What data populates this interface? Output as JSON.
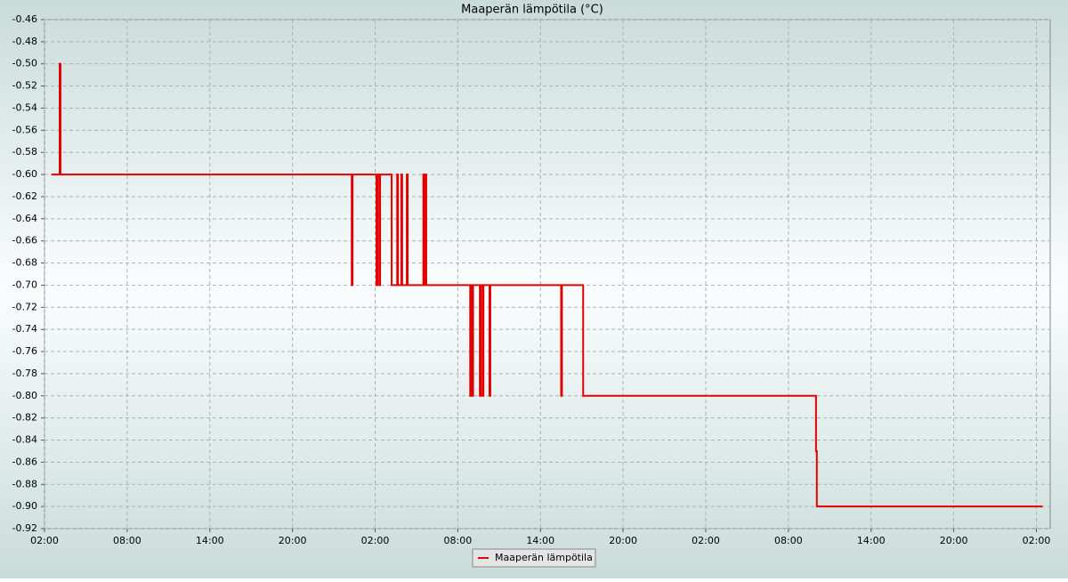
{
  "chart_data": {
    "type": "line",
    "title": "Maaperän lämpötila (°C)",
    "x": [
      0.5,
      1.1,
      1.1,
      1.16,
      1.16,
      22.3,
      22.3,
      22.36,
      22.36,
      24.1,
      24.1,
      24.16,
      24.16,
      24.3,
      24.3,
      24.36,
      24.36,
      25.2,
      25.2,
      25.6,
      25.6,
      25.66,
      25.66,
      25.9,
      25.9,
      25.96,
      25.96,
      26.3,
      26.3,
      26.36,
      26.36,
      27.5,
      27.5,
      27.56,
      27.56,
      27.65,
      27.65,
      27.71,
      27.71,
      30.9,
      30.9,
      30.96,
      30.96,
      31.05,
      31.05,
      31.11,
      31.11,
      31.6,
      31.6,
      31.66,
      31.66,
      31.8,
      31.8,
      31.86,
      31.86,
      32.3,
      32.3,
      32.36,
      32.36,
      37.5,
      37.5,
      37.56,
      37.56,
      39.1,
      39.1,
      56.0,
      56.0,
      56.06,
      56.06,
      72.45
    ],
    "series": [
      {
        "name": "Maaperän lämpötila",
        "color": "#e00000",
        "values": [
          -0.6,
          -0.6,
          -0.5,
          -0.5,
          -0.6,
          -0.6,
          -0.7,
          -0.7,
          -0.6,
          -0.6,
          -0.7,
          -0.7,
          -0.6,
          -0.6,
          -0.7,
          -0.7,
          -0.6,
          -0.6,
          -0.7,
          -0.7,
          -0.6,
          -0.6,
          -0.7,
          -0.7,
          -0.6,
          -0.6,
          -0.7,
          -0.7,
          -0.6,
          -0.6,
          -0.7,
          -0.7,
          -0.6,
          -0.6,
          -0.7,
          -0.7,
          -0.6,
          -0.6,
          -0.7,
          -0.7,
          -0.8,
          -0.8,
          -0.7,
          -0.7,
          -0.8,
          -0.8,
          -0.7,
          -0.7,
          -0.8,
          -0.8,
          -0.7,
          -0.7,
          -0.8,
          -0.8,
          -0.7,
          -0.7,
          -0.8,
          -0.8,
          -0.7,
          -0.7,
          -0.8,
          -0.8,
          -0.7,
          -0.7,
          -0.8,
          -0.8,
          -0.85,
          -0.85,
          -0.9,
          -0.9
        ]
      }
    ],
    "xlim": [
      0,
      73
    ],
    "xticks": [
      {
        "value": 0,
        "label": "02:00"
      },
      {
        "value": 6,
        "label": "08:00"
      },
      {
        "value": 12,
        "label": "14:00"
      },
      {
        "value": 18,
        "label": "20:00"
      },
      {
        "value": 24,
        "label": "02:00"
      },
      {
        "value": 30,
        "label": "08:00"
      },
      {
        "value": 36,
        "label": "14:00"
      },
      {
        "value": 42,
        "label": "20:00"
      },
      {
        "value": 48,
        "label": "02:00"
      },
      {
        "value": 54,
        "label": "08:00"
      },
      {
        "value": 60,
        "label": "14:00"
      },
      {
        "value": 66,
        "label": "20:00"
      },
      {
        "value": 72,
        "label": "02:00"
      }
    ],
    "ylim": [
      -0.92,
      -0.46
    ],
    "yticks": [
      -0.46,
      -0.48,
      {
        "value": -0.5,
        "label": "-0.50"
      },
      -0.52,
      -0.54,
      -0.56,
      -0.58,
      {
        "value": -0.6,
        "label": "-0.60"
      },
      -0.62,
      -0.64,
      -0.66,
      -0.68,
      {
        "value": -0.7,
        "label": "-0.70"
      },
      -0.72,
      -0.74,
      -0.76,
      -0.78,
      {
        "value": -0.8,
        "label": "-0.80"
      },
      -0.82,
      -0.84,
      -0.86,
      -0.88,
      {
        "value": -0.9,
        "label": "-0.90"
      },
      -0.92
    ],
    "grid": true,
    "legend": "bottom"
  }
}
